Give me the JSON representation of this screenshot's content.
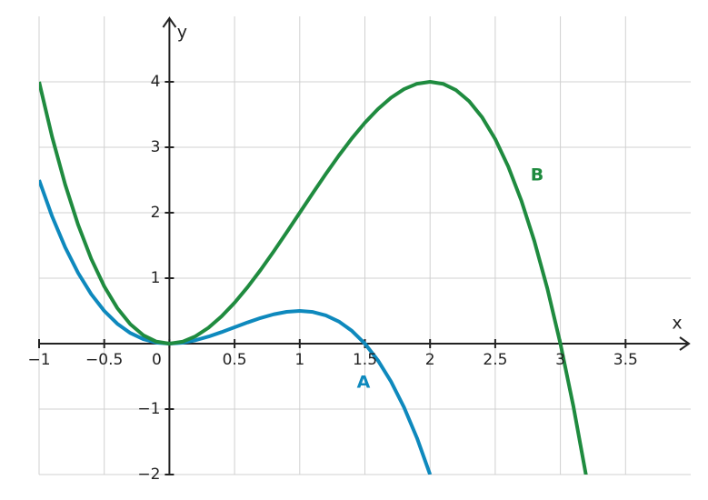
{
  "chart_data": {
    "type": "line",
    "x_label": "x",
    "y_label": "y",
    "xlim": [
      -1,
      4
    ],
    "ylim": [
      -2,
      5
    ],
    "xticks": [
      {
        "value": -1,
        "label": "−1"
      },
      {
        "value": -0.5,
        "label": "−0.5"
      },
      0,
      0.5,
      1,
      1.5,
      2,
      2.5,
      3,
      3.5
    ],
    "yticks": [
      {
        "value": -2,
        "label": "−2"
      },
      {
        "value": -1,
        "label": "−1"
      },
      1,
      2,
      3,
      4
    ],
    "grid": true,
    "series": [
      {
        "name": "A",
        "color": "#0e89bd",
        "x": [
          -1,
          -0.9,
          -0.8,
          -0.7,
          -0.6,
          -0.5,
          -0.4,
          -0.3,
          -0.2,
          -0.1,
          0,
          0.1,
          0.2,
          0.3,
          0.4,
          0.5,
          0.6,
          0.7,
          0.8,
          0.9,
          1,
          1.1,
          1.2,
          1.3,
          1.4,
          1.5,
          1.6,
          1.7,
          1.8,
          1.9,
          2
        ],
        "values": [
          2.5,
          1.944,
          1.472,
          1.078,
          0.756,
          0.5,
          0.304,
          0.162,
          0.068,
          0.016,
          0,
          0.014,
          0.052,
          0.108,
          0.176,
          0.25,
          0.324,
          0.392,
          0.448,
          0.486,
          0.5,
          0.484,
          0.432,
          0.338,
          0.196,
          0,
          -0.256,
          -0.578,
          -0.972,
          -1.444,
          -2
        ]
      },
      {
        "name": "B",
        "color": "#1f8b3f",
        "x": [
          -1,
          -0.9,
          -0.8,
          -0.7,
          -0.6,
          -0.5,
          -0.4,
          -0.3,
          -0.2,
          -0.1,
          0,
          0.1,
          0.2,
          0.3,
          0.4,
          0.5,
          0.6,
          0.7,
          0.8,
          0.9,
          1,
          1.1,
          1.2,
          1.3,
          1.4,
          1.5,
          1.6,
          1.7,
          1.8,
          1.9,
          2,
          2.1,
          2.2,
          2.3,
          2.4,
          2.5,
          2.6,
          2.7,
          2.8,
          2.9,
          3,
          3.1,
          3.2
        ],
        "values": [
          4,
          3.159,
          2.432,
          1.813,
          1.296,
          0.875,
          0.544,
          0.297,
          0.128,
          0.031,
          0,
          0.029,
          0.112,
          0.243,
          0.416,
          0.625,
          0.864,
          1.127,
          1.408,
          1.701,
          2,
          2.299,
          2.592,
          2.873,
          3.136,
          3.375,
          3.584,
          3.757,
          3.888,
          3.971,
          4,
          3.969,
          3.872,
          3.703,
          3.456,
          3.125,
          2.704,
          2.187,
          1.568,
          0.841,
          0,
          -0.961,
          -2.048
        ]
      }
    ]
  }
}
